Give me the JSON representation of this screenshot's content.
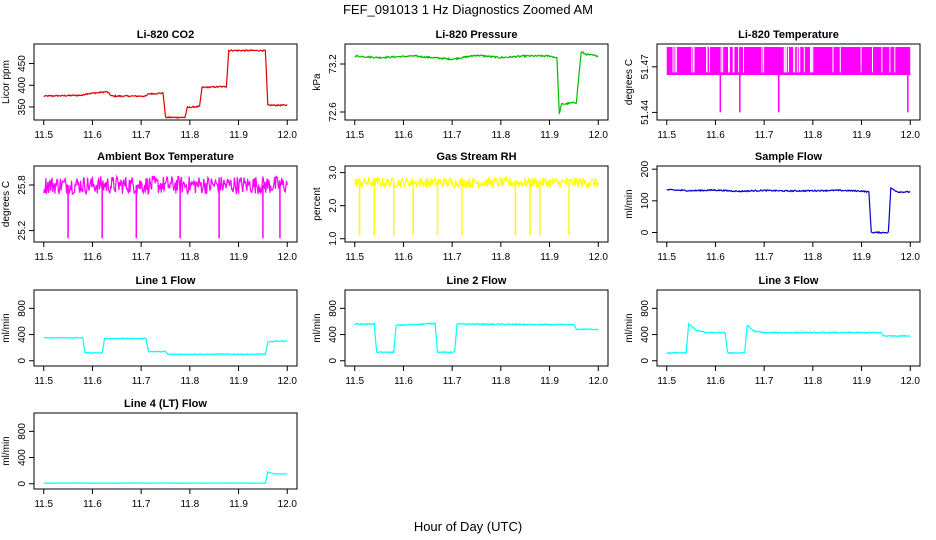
{
  "figure": {
    "title": "FEF_091013  1 Hz Diagnostics Zoomed AM",
    "xlabel": "Hour of Day (UTC)"
  },
  "chart_data": [
    {
      "type": "line",
      "title": "Li-820 CO2",
      "ylabel": "Licor ppm",
      "color": "#dd0000",
      "xlim": [
        11.48,
        12.02
      ],
      "ylim": [
        320,
        495
      ],
      "xticks": [
        "11.5",
        "11.6",
        "11.7",
        "11.8",
        "11.9",
        "12.0"
      ],
      "yticks": [
        350,
        400,
        450
      ],
      "series": [
        {
          "x": [
            11.5,
            11.58,
            11.585,
            11.63,
            11.64,
            11.71,
            11.715,
            11.745,
            11.75,
            11.79,
            11.795,
            11.82,
            11.825,
            11.875,
            11.88,
            11.955,
            11.96,
            12.0
          ],
          "y": [
            375,
            377,
            380,
            385,
            375,
            375,
            380,
            382,
            326,
            326,
            349,
            351,
            395,
            397,
            480,
            480,
            354,
            354
          ]
        }
      ],
      "noise": 1.5
    },
    {
      "type": "line",
      "title": "Li-820 Pressure",
      "ylabel": "kPa",
      "color": "#00bb00",
      "xlim": [
        11.48,
        12.02
      ],
      "ylim": [
        72.5,
        73.45
      ],
      "xticks": [
        "11.5",
        "11.6",
        "11.7",
        "11.8",
        "11.9",
        "12.0"
      ],
      "yticks": [
        72.6,
        73.2
      ],
      "ytick_labels": [
        "72.6",
        "73.2"
      ],
      "extra_ytick_labels": [
        "73.2"
      ],
      "series": [
        {
          "x": [
            11.5,
            11.55,
            11.62,
            11.7,
            11.75,
            11.8,
            11.85,
            11.9,
            11.915,
            11.92,
            11.925,
            11.93,
            11.955,
            11.965,
            11.975,
            12.0
          ],
          "y": [
            73.3,
            73.28,
            73.3,
            73.26,
            73.31,
            73.28,
            73.3,
            73.3,
            73.28,
            72.58,
            72.7,
            72.7,
            72.72,
            73.35,
            73.32,
            73.3
          ]
        }
      ],
      "noise": 0.01
    },
    {
      "type": "line",
      "title": "Li-820 Temperature",
      "ylabel": "degrees C",
      "color": "#ff00ff",
      "xlim": [
        11.48,
        12.02
      ],
      "ylim": [
        51.435,
        51.485
      ],
      "xticks": [
        "11.5",
        "11.6",
        "11.7",
        "11.8",
        "11.9",
        "12.0"
      ],
      "yticks": [
        51.44,
        51.47
      ],
      "series": [
        {
          "x": [
            11.5,
            12.0
          ],
          "y": [
            51.465,
            51.465
          ]
        }
      ],
      "band": [
        51.465,
        51.483
      ],
      "spikes": [
        11.61,
        11.65,
        11.73,
        11.995
      ],
      "spike_low": 51.44
    },
    {
      "type": "line",
      "title": "Ambient Box Temperature",
      "ylabel": "degrees C",
      "color": "#ff00ff",
      "xlim": [
        11.48,
        12.02
      ],
      "ylim": [
        25.05,
        26.05
      ],
      "xticks": [
        "11.5",
        "11.6",
        "11.7",
        "11.8",
        "11.9",
        "12.0"
      ],
      "yticks": [
        25.2,
        25.8
      ],
      "series": [
        {
          "x": [
            11.5,
            12.0
          ],
          "y": [
            25.8,
            25.8
          ]
        }
      ],
      "noise": 0.12,
      "spikes_down": [
        11.55,
        11.62,
        11.69,
        11.78,
        11.86,
        11.95,
        11.985
      ],
      "spike_low": 25.1
    },
    {
      "type": "line",
      "title": "Gas Stream RH",
      "ylabel": "percent",
      "color": "#ffff00",
      "xlim": [
        11.48,
        12.02
      ],
      "ylim": [
        0.9,
        3.2
      ],
      "xticks": [
        "11.5",
        "11.6",
        "11.7",
        "11.8",
        "11.9",
        "12.0"
      ],
      "yticks": [
        1.0,
        2.0,
        3.0
      ],
      "ytick_labels": [
        "1.0",
        "2.0",
        "3.0"
      ],
      "series": [
        {
          "x": [
            11.5,
            12.0
          ],
          "y": [
            2.7,
            2.7
          ]
        }
      ],
      "noise": 0.15,
      "spikes_down": [
        11.51,
        11.54,
        11.58,
        11.62,
        11.67,
        11.72,
        11.83,
        11.86,
        11.88,
        11.94
      ],
      "spike_low": 1.1
    },
    {
      "type": "line",
      "title": "Sample Flow",
      "ylabel": "ml/min",
      "color": "#0000cc",
      "xlim": [
        11.48,
        12.02
      ],
      "ylim": [
        -30,
        210
      ],
      "xticks": [
        "11.5",
        "11.6",
        "11.7",
        "11.8",
        "11.9",
        "12.0"
      ],
      "yticks": [
        0,
        100,
        200
      ],
      "series": [
        {
          "x": [
            11.5,
            11.55,
            11.6,
            11.65,
            11.7,
            11.75,
            11.8,
            11.85,
            11.9,
            11.915,
            11.92,
            11.955,
            11.96,
            11.975,
            12.0
          ],
          "y": [
            135,
            132,
            134,
            130,
            133,
            131,
            132,
            133,
            131,
            128,
            0,
            0,
            140,
            128,
            128
          ]
        }
      ],
      "noise": 2
    },
    {
      "type": "line",
      "title": "Line 1 Flow",
      "ylabel": "ml/min",
      "color": "#00ffff",
      "xlim": [
        11.48,
        12.02
      ],
      "ylim": [
        -80,
        1080
      ],
      "xticks": [
        "11.5",
        "11.6",
        "11.7",
        "11.8",
        "11.9",
        "12.0"
      ],
      "yticks": [
        0,
        400,
        800
      ],
      "series": [
        {
          "x": [
            11.5,
            11.58,
            11.585,
            11.62,
            11.625,
            11.71,
            11.715,
            11.75,
            11.755,
            11.955,
            11.96,
            11.975,
            12.0
          ],
          "y": [
            350,
            350,
            120,
            120,
            340,
            340,
            140,
            140,
            100,
            100,
            280,
            300,
            300
          ]
        }
      ],
      "noise": 6
    },
    {
      "type": "line",
      "title": "Line 2 Flow",
      "ylabel": "ml/min",
      "color": "#00ffff",
      "xlim": [
        11.48,
        12.02
      ],
      "ylim": [
        -80,
        1080
      ],
      "xticks": [
        "11.5",
        "11.6",
        "11.7",
        "11.8",
        "11.9",
        "12.0"
      ],
      "yticks": [
        0,
        400,
        800
      ],
      "series": [
        {
          "x": [
            11.5,
            11.54,
            11.545,
            11.58,
            11.585,
            11.665,
            11.67,
            11.705,
            11.71,
            11.95,
            11.955,
            12.0
          ],
          "y": [
            560,
            560,
            130,
            130,
            540,
            570,
            130,
            130,
            560,
            550,
            480,
            480
          ]
        }
      ],
      "noise": 8
    },
    {
      "type": "line",
      "title": "Line 3 Flow",
      "ylabel": "ml/min",
      "color": "#00ffff",
      "xlim": [
        11.48,
        12.02
      ],
      "ylim": [
        -80,
        1080
      ],
      "xticks": [
        "11.5",
        "11.6",
        "11.7",
        "11.8",
        "11.9",
        "12.0"
      ],
      "yticks": [
        0,
        400,
        800
      ],
      "series": [
        {
          "x": [
            11.5,
            11.54,
            11.545,
            11.56,
            11.58,
            11.62,
            11.625,
            11.66,
            11.665,
            11.68,
            11.7,
            11.94,
            11.945,
            12.0
          ],
          "y": [
            120,
            120,
            560,
            470,
            430,
            430,
            120,
            120,
            540,
            450,
            430,
            430,
            380,
            380
          ]
        }
      ],
      "noise": 8
    },
    {
      "type": "line",
      "title": "Line 4 (LT) Flow",
      "ylabel": "ml/min",
      "color": "#00ffff",
      "xlim": [
        11.48,
        12.02
      ],
      "ylim": [
        -80,
        1080
      ],
      "xticks": [
        "11.5",
        "11.6",
        "11.7",
        "11.8",
        "11.9",
        "12.0"
      ],
      "yticks": [
        0,
        400,
        800
      ],
      "series": [
        {
          "x": [
            11.5,
            11.955,
            11.96,
            11.975,
            12.0
          ],
          "y": [
            10,
            10,
            180,
            150,
            150
          ]
        }
      ],
      "noise": 2
    }
  ]
}
